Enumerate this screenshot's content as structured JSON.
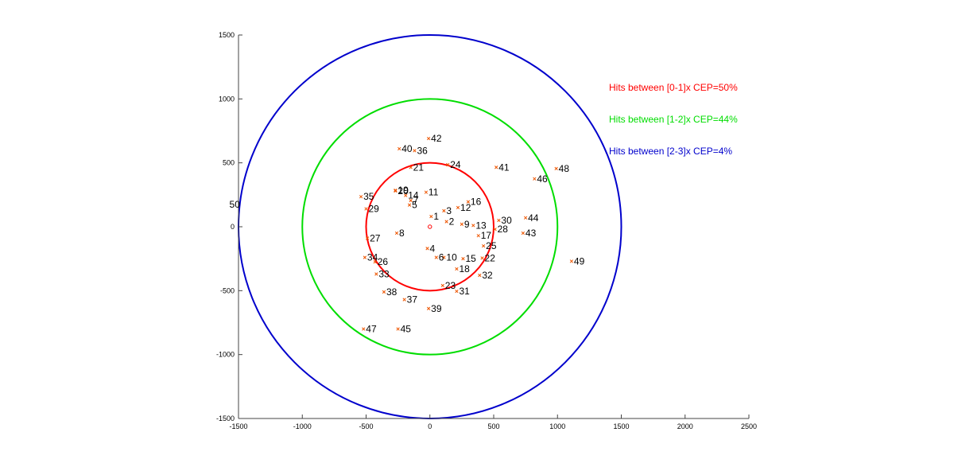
{
  "chart_data": {
    "type": "scatter",
    "title": "",
    "xlabel": "",
    "ylabel": "",
    "xlim": [
      -1500,
      2500
    ],
    "ylim": [
      -1500,
      1500
    ],
    "x_ticks": [
      -1500,
      -1000,
      -500,
      0,
      500,
      1000,
      1500,
      2000,
      2500
    ],
    "y_ticks": [
      -1500,
      -1000,
      -500,
      0,
      500,
      1000,
      1500
    ],
    "grid": false,
    "center": {
      "x": 0,
      "y": 0,
      "marker": "o",
      "color": "#ff0000"
    },
    "circles": [
      {
        "radius": 500,
        "color": "#ff0000",
        "label": "Hits between [0-1]x CEP=50%"
      },
      {
        "radius": 1000,
        "color": "#00dd00",
        "label": "Hits between [1-2]x CEP=44%"
      },
      {
        "radius": 1500,
        "color": "#0000cc",
        "label": "Hits between [2-3]x CEP=4%"
      }
    ],
    "legend_position": "right",
    "marker_color": "#ee5500",
    "points": [
      {
        "label": "1",
        "x": 10,
        "y": 80
      },
      {
        "label": "2",
        "x": 130,
        "y": 40
      },
      {
        "label": "3",
        "x": 110,
        "y": 125
      },
      {
        "label": "4",
        "x": -20,
        "y": -170
      },
      {
        "label": "5",
        "x": -160,
        "y": 170
      },
      {
        "label": "6",
        "x": 50,
        "y": -240
      },
      {
        "label": "7",
        "x": -150,
        "y": 205
      },
      {
        "label": "8",
        "x": -260,
        "y": -50
      },
      {
        "label": "9",
        "x": 250,
        "y": 20
      },
      {
        "label": "10",
        "x": 110,
        "y": -240
      },
      {
        "label": "11",
        "x": -30,
        "y": 270
      },
      {
        "label": "12",
        "x": 220,
        "y": 150
      },
      {
        "label": "13",
        "x": 340,
        "y": 10
      },
      {
        "label": "14",
        "x": -190,
        "y": 245
      },
      {
        "label": "15",
        "x": 260,
        "y": -250
      },
      {
        "label": "16",
        "x": 300,
        "y": 195
      },
      {
        "label": "17",
        "x": 380,
        "y": -70
      },
      {
        "label": "18",
        "x": 210,
        "y": -330
      },
      {
        "label": "19",
        "x": -270,
        "y": 285
      },
      {
        "label": "20",
        "x": -270,
        "y": 280
      },
      {
        "label": "21",
        "x": -150,
        "y": 465
      },
      {
        "label": "22",
        "x": 410,
        "y": -245
      },
      {
        "label": "23",
        "x": 100,
        "y": -460
      },
      {
        "label": "24",
        "x": 140,
        "y": 485
      },
      {
        "label": "25",
        "x": 420,
        "y": -150
      },
      {
        "label": "26",
        "x": -430,
        "y": -275
      },
      {
        "label": "27",
        "x": -490,
        "y": -90
      },
      {
        "label": "28",
        "x": 510,
        "y": -20
      },
      {
        "label": "29",
        "x": -500,
        "y": 140
      },
      {
        "label": "30",
        "x": 540,
        "y": 50
      },
      {
        "label": "31",
        "x": 210,
        "y": -505
      },
      {
        "label": "32",
        "x": 390,
        "y": -380
      },
      {
        "label": "33",
        "x": -420,
        "y": -370
      },
      {
        "label": "34",
        "x": -510,
        "y": -240
      },
      {
        "label": "35",
        "x": -540,
        "y": 235
      },
      {
        "label": "36",
        "x": -120,
        "y": 595
      },
      {
        "label": "37",
        "x": -200,
        "y": -570
      },
      {
        "label": "38",
        "x": -360,
        "y": -510
      },
      {
        "label": "39",
        "x": -10,
        "y": -640
      },
      {
        "label": "40",
        "x": -240,
        "y": 610
      },
      {
        "label": "41",
        "x": 520,
        "y": 465
      },
      {
        "label": "42",
        "x": -10,
        "y": 690
      },
      {
        "label": "43",
        "x": 730,
        "y": -50
      },
      {
        "label": "44",
        "x": 750,
        "y": 70
      },
      {
        "label": "45",
        "x": -250,
        "y": -800
      },
      {
        "label": "46",
        "x": 820,
        "y": 375
      },
      {
        "label": "47",
        "x": -520,
        "y": -800
      },
      {
        "label": "48",
        "x": 990,
        "y": 455
      },
      {
        "label": "49",
        "x": 1110,
        "y": -270
      },
      {
        "label": "50",
        "x": -1590,
        "y": 175
      }
    ]
  }
}
